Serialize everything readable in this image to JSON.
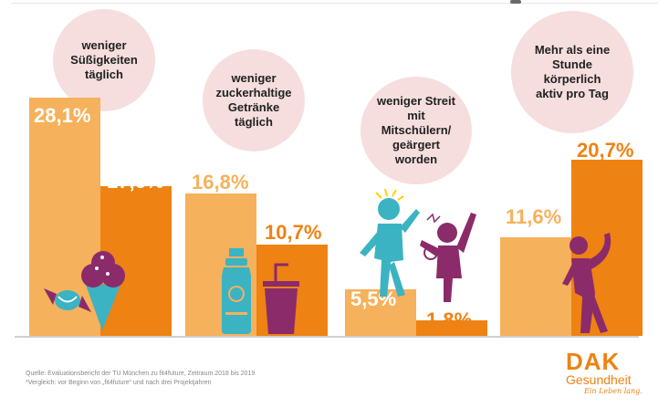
{
  "chart_data": {
    "type": "bar",
    "series_colors": {
      "before": "#f5b15c",
      "after": "#ee8213"
    },
    "groups": [
      {
        "label_lines": [
          "weniger",
          "Süßigkeiten",
          "täglich"
        ],
        "values": [
          28.1,
          17.6
        ],
        "value_labels": [
          "28,1%",
          "17,6%"
        ]
      },
      {
        "label_lines": [
          "weniger",
          "zuckerhaltige",
          "Getränke täglich"
        ],
        "values": [
          16.8,
          10.7
        ],
        "value_labels": [
          "16,8%",
          "10,7%"
        ]
      },
      {
        "label_lines": [
          "weniger Streit mit",
          "Mitschülern/",
          "geärgert worden"
        ],
        "values": [
          5.5,
          1.8
        ],
        "value_labels": [
          "5,5%",
          "1,8%"
        ]
      },
      {
        "label_lines": [
          "Mehr als eine",
          "Stunde körperlich",
          "aktiv pro Tag"
        ],
        "values": [
          11.6,
          20.7
        ],
        "value_labels": [
          "11,6%",
          "20,7%"
        ]
      }
    ]
  },
  "footnote": {
    "line1": "Quelle: Evaluationsbericht der TU München zu fit4future, Zeitraum 2018 bis 2019",
    "line2": "*Vergleich: vor Beginn von „fit4future“ und nach drei Projektjahren"
  },
  "logo": {
    "brand": "DAK",
    "name": "Gesundheit",
    "slogan": "Ein Leben lang."
  },
  "icons": [
    "candy-icon",
    "ice-cream-icon",
    "water-bottle-icon",
    "cup-with-straw-icon",
    "arguing-people-icon",
    "exercising-person-icon"
  ]
}
